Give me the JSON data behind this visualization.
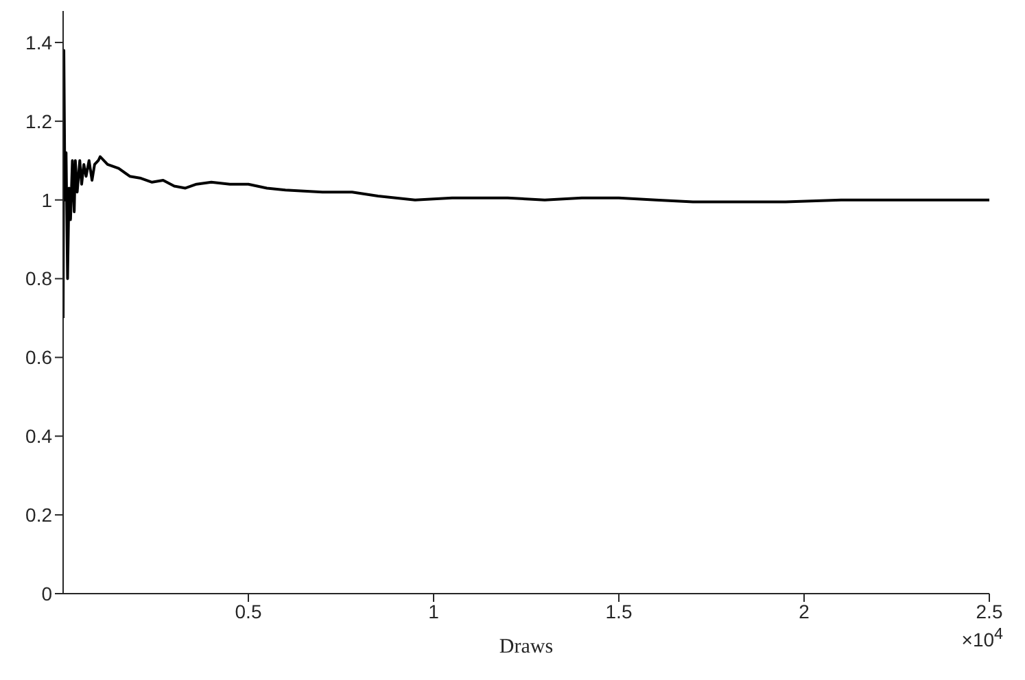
{
  "chart_data": {
    "type": "line",
    "xlabel": "Draws",
    "annotations": [
      "×10$^{4}$"
    ],
    "xlim": [
      0,
      2.5
    ],
    "xticks": [
      0.5,
      1,
      1.5,
      2,
      2.5
    ],
    "ylim": [
      0,
      1.48
    ],
    "yticks": [
      0,
      0.2,
      0.4,
      0.6,
      0.8,
      1,
      1.2,
      1.4
    ],
    "grid": false,
    "marker": "none",
    "line_style": "solid",
    "series": [
      {
        "color": "#000000",
        "x": [
          0.0001,
          0.002,
          0.005,
          0.008,
          0.012,
          0.016,
          0.02,
          0.025,
          0.03,
          0.033,
          0.038,
          0.045,
          0.05,
          0.056,
          0.062,
          0.07,
          0.078,
          0.085,
          0.095,
          0.1,
          0.12,
          0.15,
          0.18,
          0.21,
          0.24,
          0.27,
          0.3,
          0.33,
          0.36,
          0.4,
          0.45,
          0.5,
          0.55,
          0.6,
          0.7,
          0.78,
          0.85,
          0.95,
          1.05,
          1.2,
          1.3,
          1.4,
          1.5,
          1.6,
          1.7,
          1.85,
          1.95,
          2.1,
          2.3,
          2.5
        ],
        "values": [
          0.7,
          1.38,
          1.0,
          1.12,
          0.8,
          1.03,
          0.95,
          1.1,
          0.97,
          1.1,
          1.02,
          1.1,
          1.04,
          1.09,
          1.06,
          1.1,
          1.05,
          1.09,
          1.1,
          1.11,
          1.09,
          1.08,
          1.06,
          1.055,
          1.045,
          1.05,
          1.035,
          1.03,
          1.04,
          1.045,
          1.04,
          1.04,
          1.03,
          1.025,
          1.02,
          1.02,
          1.01,
          1.0,
          1.005,
          1.005,
          1.0,
          1.005,
          1.005,
          1.0,
          0.995,
          0.995,
          0.995,
          1.0,
          1.0,
          1.0
        ]
      }
    ]
  }
}
